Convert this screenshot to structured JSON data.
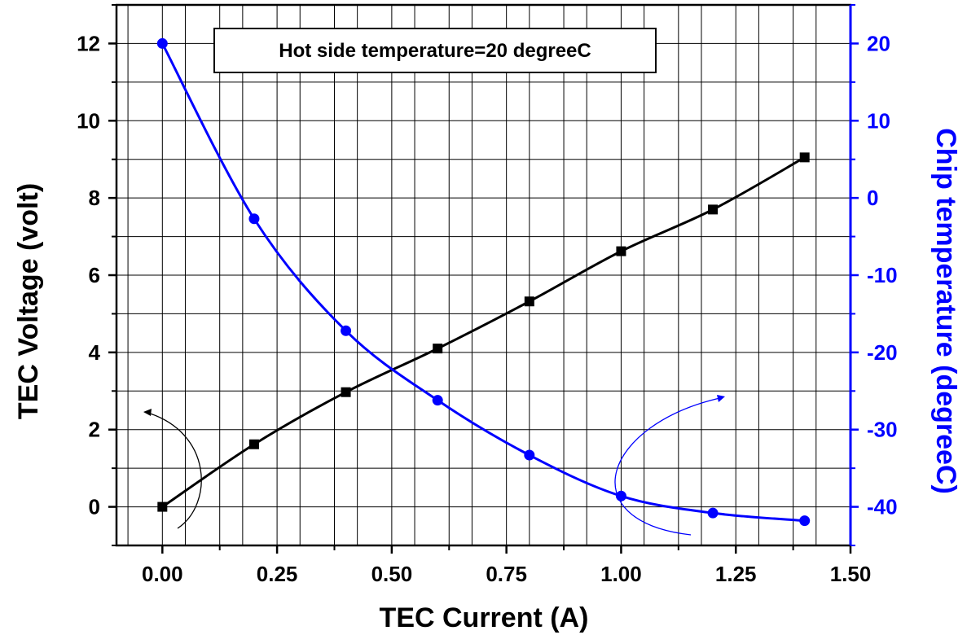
{
  "chart_data": {
    "type": "line",
    "title": "",
    "annotation": "Hot side temperature=20 degreeC",
    "xlabel": "TEC Current (A)",
    "ylabel_left": "TEC Voltage (volt)",
    "ylabel_right": "Chip temperature (degreeC)",
    "xlim": [
      -0.1,
      1.5
    ],
    "ylim_left": [
      -1,
      13
    ],
    "ylim_right": [
      -45,
      25
    ],
    "x_ticks": [
      "0.00",
      "0.25",
      "0.50",
      "0.75",
      "1.00",
      "1.25",
      "1.50"
    ],
    "x_tick_values": [
      0,
      0.25,
      0.5,
      0.75,
      1.0,
      1.25,
      1.5
    ],
    "y_left_ticks": [
      "0",
      "2",
      "4",
      "6",
      "8",
      "10",
      "12"
    ],
    "y_left_tick_values": [
      0,
      2,
      4,
      6,
      8,
      10,
      12
    ],
    "y_right_ticks": [
      "-40",
      "-30",
      "-20",
      "-10",
      "0",
      "10",
      "20"
    ],
    "y_right_tick_values": [
      -40,
      -30,
      -20,
      -10,
      0,
      10,
      20
    ],
    "grid": true,
    "x": [
      0,
      0.2,
      0.4,
      0.6,
      0.8,
      1.0,
      1.2,
      1.4
    ],
    "series": [
      {
        "axis": "left",
        "marker": "square",
        "color": "#000000",
        "values": [
          0,
          1.62,
          2.97,
          4.1,
          5.32,
          6.62,
          7.7,
          9.05
        ]
      },
      {
        "axis": "right",
        "marker": "circle",
        "color": "#0000ff",
        "values": [
          20,
          -2.7,
          -17.2,
          -26.2,
          -33.3,
          -38.6,
          -40.8,
          -41.8
        ]
      }
    ],
    "colors": {
      "left_series": "#000000",
      "right_series": "#0000ff",
      "right_axis": "#0000ff"
    }
  }
}
